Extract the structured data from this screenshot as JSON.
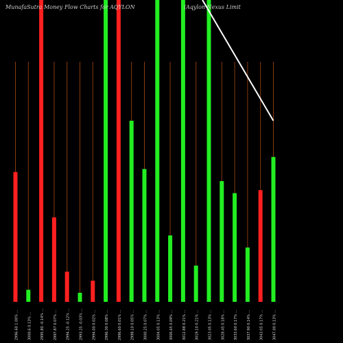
{
  "chart_data": {
    "type": "bar",
    "title_left": "MunafaSutra Money Flow  Charts for AQYLON",
    "title_right": "(Aqylon Nexus Limit",
    "categories": [
      "2996.60 1.00% ...",
      "3000.6 0.13% ...",
      "2995.80 -0.14% ...",
      "2997.87 0.07% ...",
      "2994.25 -0.12% ...",
      "2993.25 -0.03% ...",
      "2994.00 0.02% ...",
      "2996.30 0.08% ...",
      "2996.60 0.01% ...",
      "2998.10 0.05% ...",
      "3000.25 0.07% ...",
      "3004.05 0.13% ...",
      "3006.65 0.09% ...",
      "3012.88 0.21% ...",
      "3019.10 0.21% ...",
      "3023.05 0.13% ...",
      "3028.45 0.18% ...",
      "3033.60 0.17% ...",
      "3037.90 0.14% ...",
      "3043.05 0.17% ...",
      "3047.00 0.13% ..."
    ],
    "values": [
      0.43,
      0.04,
      1.0,
      0.28,
      0.1,
      0.03,
      0.07,
      1.0,
      1.0,
      0.6,
      0.44,
      1.0,
      0.22,
      1.0,
      0.12,
      1.0,
      0.4,
      0.36,
      0.18,
      0.37,
      0.48
    ],
    "colors": [
      "red",
      "green",
      "red",
      "red",
      "red",
      "green",
      "red",
      "green",
      "red",
      "green",
      "green",
      "green",
      "green",
      "green",
      "green",
      "green",
      "green",
      "green",
      "green",
      "red",
      "green"
    ],
    "ylim": [
      0,
      1
    ],
    "line": {
      "name": "",
      "points": [
        [
          14.5,
          1.0
        ],
        [
          20,
          0.6
        ]
      ]
    },
    "accent_colors": {
      "red": "#ff2020",
      "green": "#22ee22",
      "stick": "#8a3a10",
      "line": "#ffffff"
    }
  }
}
